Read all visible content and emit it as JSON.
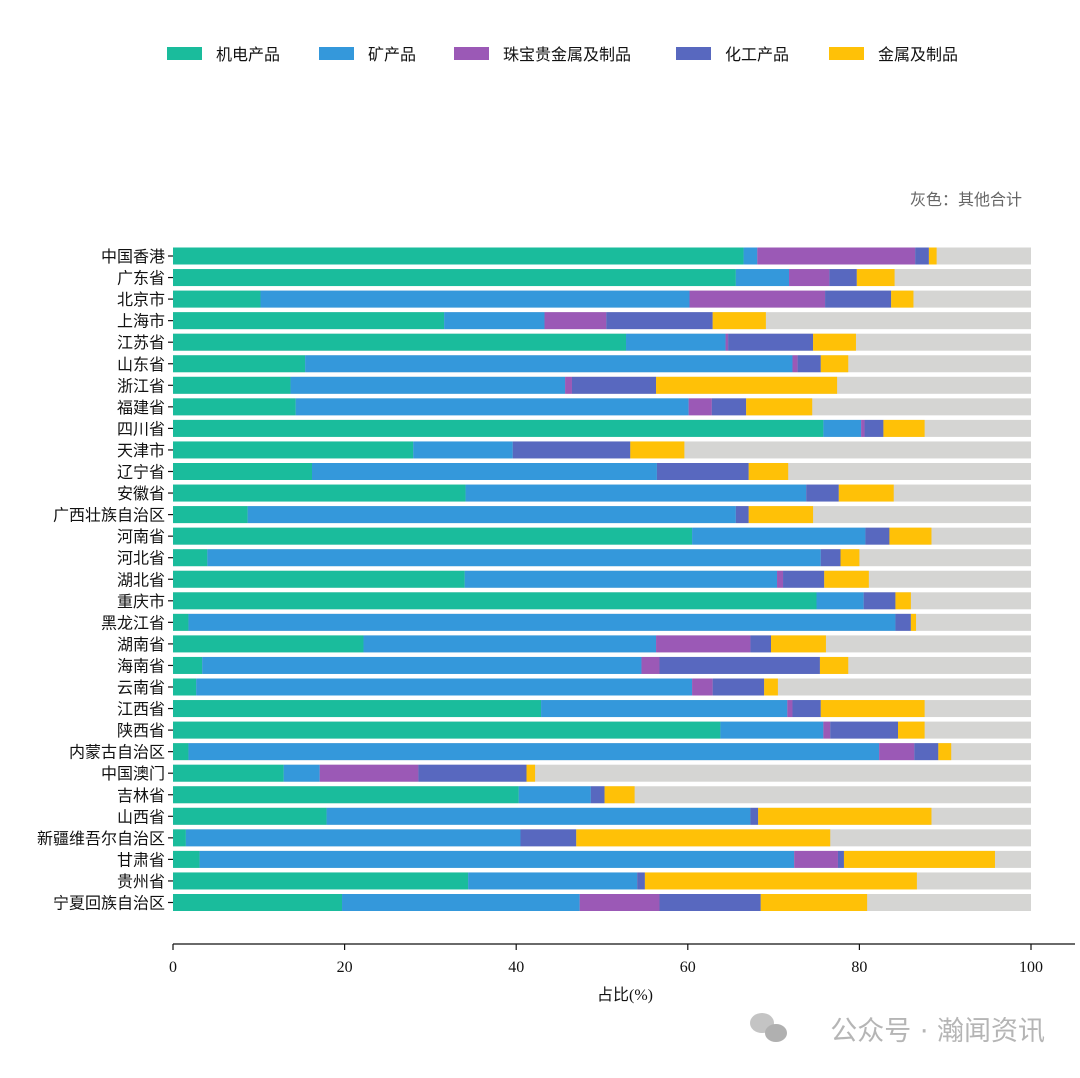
{
  "chart_data": {
    "type": "bar",
    "orientation": "horizontal",
    "stacked": true,
    "xlabel": "占比(%)",
    "xlim": [
      0,
      100
    ],
    "xticks": [
      0,
      20,
      40,
      60,
      80,
      100
    ],
    "note": "灰色：其他合计",
    "legend_position": "top",
    "remainder_color": "#d5d5d3",
    "categories": [
      "中国香港",
      "广东省",
      "北京市",
      "上海市",
      "江苏省",
      "山东省",
      "浙江省",
      "福建省",
      "四川省",
      "天津市",
      "辽宁省",
      "安徽省",
      "广西壮族自治区",
      "河南省",
      "河北省",
      "湖北省",
      "重庆市",
      "黑龙江省",
      "湖南省",
      "海南省",
      "云南省",
      "江西省",
      "陕西省",
      "内蒙古自治区",
      "中国澳门",
      "吉林省",
      "山西省",
      "新疆维吾尔自治区",
      "甘肃省",
      "贵州省",
      "宁夏回族自治区"
    ],
    "series": [
      {
        "name": "机电产品",
        "color": "#1abc9c",
        "values": [
          66.5,
          65.6,
          10.2,
          31.6,
          52.8,
          15.4,
          13.7,
          14.3,
          75.8,
          28.0,
          16.2,
          34.1,
          8.7,
          60.5,
          4.0,
          34.0,
          75.0,
          1.8,
          22.2,
          3.4,
          2.7,
          42.9,
          63.8,
          1.8,
          12.9,
          40.3,
          17.9,
          1.5,
          3.1,
          34.4,
          19.7
        ]
      },
      {
        "name": "矿产品",
        "color": "#3498db",
        "values": [
          1.6,
          6.2,
          50.0,
          11.7,
          11.6,
          56.8,
          32.0,
          45.8,
          4.4,
          11.6,
          40.2,
          39.7,
          56.9,
          20.2,
          71.5,
          36.4,
          5.5,
          82.4,
          34.1,
          51.2,
          57.8,
          28.7,
          12.0,
          80.5,
          4.2,
          8.4,
          49.4,
          39.0,
          69.3,
          19.7,
          27.7
        ]
      },
      {
        "name": "珠宝贵金属及制品",
        "color": "#9b59b6",
        "values": [
          18.4,
          4.7,
          15.8,
          7.2,
          0.3,
          0.6,
          0.8,
          2.7,
          0.4,
          0,
          0,
          0,
          0,
          0,
          0,
          0.7,
          0,
          0,
          11.0,
          2.1,
          2.4,
          0.6,
          0.8,
          4.1,
          11.5,
          0,
          0,
          0,
          5.1,
          0,
          9.3
        ]
      },
      {
        "name": "化工产品",
        "color": "#5868bf",
        "values": [
          1.6,
          3.2,
          7.7,
          12.4,
          9.9,
          2.7,
          9.8,
          4.0,
          2.2,
          13.7,
          10.7,
          3.8,
          1.5,
          2.8,
          2.3,
          4.8,
          3.7,
          1.8,
          2.4,
          18.7,
          6.0,
          3.3,
          7.9,
          2.8,
          12.6,
          1.6,
          0.9,
          6.5,
          0.7,
          0.9,
          11.8
        ]
      },
      {
        "name": "金属及制品",
        "color": "#ffc107",
        "values": [
          0.9,
          4.4,
          2.6,
          6.2,
          5.0,
          3.2,
          21.1,
          7.7,
          4.8,
          6.3,
          4.6,
          6.4,
          7.5,
          4.9,
          2.2,
          5.2,
          1.8,
          0.6,
          6.4,
          3.3,
          1.6,
          12.1,
          3.1,
          1.5,
          1.0,
          3.5,
          20.2,
          29.6,
          17.6,
          31.7,
          12.4
        ]
      }
    ]
  },
  "watermark": "公众号 · 瀚闻资讯"
}
